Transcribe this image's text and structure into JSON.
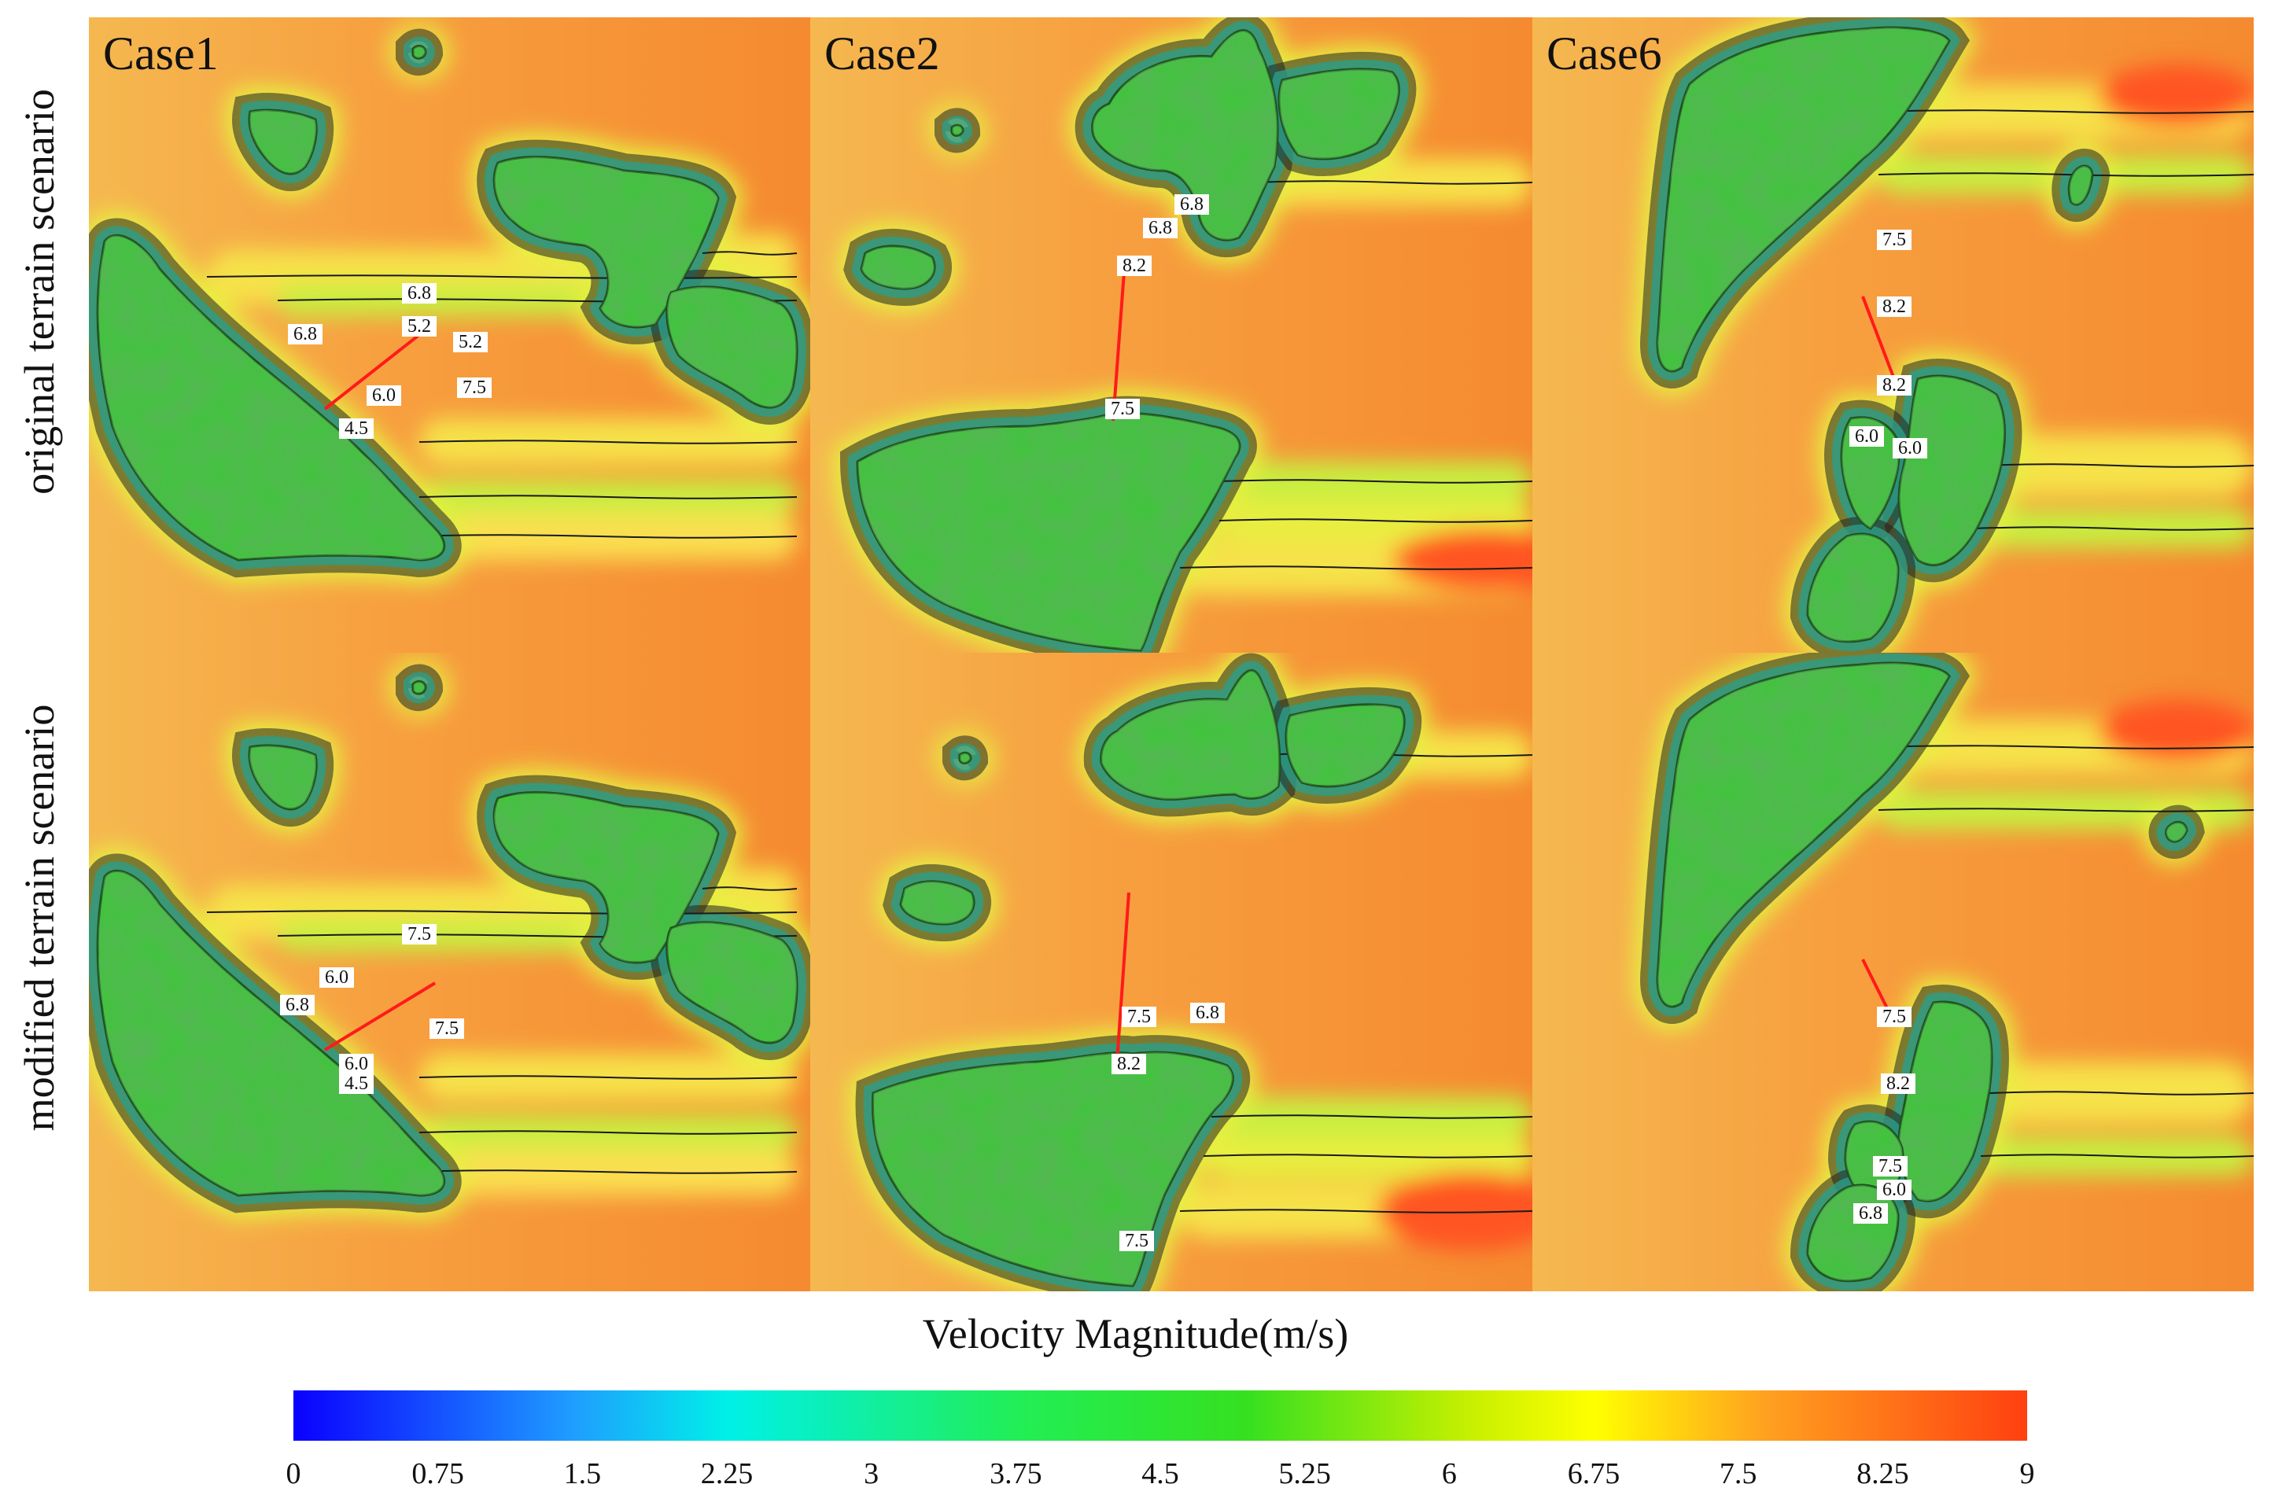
{
  "row_labels": [
    "original terrain scenario",
    "modified terrain scenario"
  ],
  "cases": [
    "Case1",
    "Case2",
    "Case6"
  ],
  "panels": [
    {
      "case": "Case1",
      "row": 0,
      "contour_labels": [
        "6.8",
        "5.2",
        "5.2",
        "6.8",
        "6.0",
        "7.5",
        "4.5"
      ]
    },
    {
      "case": "Case2",
      "row": 0,
      "contour_labels": [
        "6.8",
        "6.8",
        "8.2",
        "7.5"
      ]
    },
    {
      "case": "Case6",
      "row": 0,
      "contour_labels": [
        "7.5",
        "8.2",
        "8.2",
        "6.0",
        "6.0"
      ]
    },
    {
      "case": "Case1",
      "row": 1,
      "contour_labels": [
        "7.5",
        "6.0",
        "6.8",
        "7.5",
        "6.0",
        "4.5"
      ]
    },
    {
      "case": "Case2",
      "row": 1,
      "contour_labels": [
        "7.5",
        "6.8",
        "8.2",
        "7.5"
      ]
    },
    {
      "case": "Case6",
      "row": 1,
      "contour_labels": [
        "7.5",
        "8.2",
        "7.5",
        "6.0",
        "6.8"
      ]
    }
  ],
  "colorbar": {
    "title": "Velocity Magnitude(m/s)",
    "ticks": [
      "0",
      "0.75",
      "1.5",
      "2.25",
      "3",
      "3.75",
      "4.5",
      "5.25",
      "6",
      "6.75",
      "7.5",
      "8.25",
      "9"
    ],
    "min": 0,
    "max": 9,
    "colors": [
      "#0a00ff",
      "#1f9cff",
      "#00f0e8",
      "#22ee55",
      "#36e020",
      "#c8f000",
      "#ffff00",
      "#ffa020",
      "#ff4010"
    ]
  },
  "colors": {
    "background_field": "#f7a040",
    "terrain": "#3fc53a",
    "contour_line": "#111111",
    "measurement_line": "#ff1a1a"
  }
}
